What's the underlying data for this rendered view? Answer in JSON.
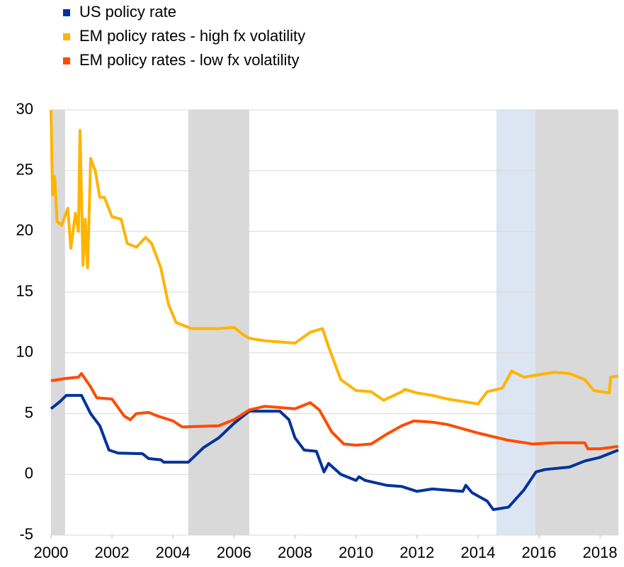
{
  "chart_data": {
    "type": "line",
    "xlim": [
      2000,
      2018.6
    ],
    "ylim": [
      -5,
      30
    ],
    "xticks": [
      2000,
      2002,
      2004,
      2006,
      2008,
      2010,
      2012,
      2014,
      2016,
      2018
    ],
    "yticks": [
      -5,
      0,
      5,
      10,
      15,
      20,
      25,
      30
    ],
    "grid": true,
    "bands": [
      {
        "start": 2000,
        "end": 2000.46,
        "color": "#d9d9d9"
      },
      {
        "start": 2004.5,
        "end": 2006.5,
        "color": "#d9d9d9"
      },
      {
        "start": 2014.6,
        "end": 2015.88,
        "color": "#dce6f2"
      },
      {
        "start": 2015.88,
        "end": 2018.6,
        "color": "#d9d9d9"
      }
    ],
    "series": [
      {
        "name": "US policy rate",
        "color": "#003299",
        "x": [
          2000,
          2000.3,
          2000.5,
          2001.0,
          2001.3,
          2001.6,
          2001.9,
          2002.2,
          2003.0,
          2003.2,
          2003.6,
          2003.7,
          2004.5,
          2005.0,
          2005.5,
          2006.0,
          2006.5,
          2007.5,
          2007.8,
          2008.0,
          2008.3,
          2008.7,
          2008.95,
          2009.1,
          2009.5,
          2010.0,
          2010.1,
          2010.3,
          2011.0,
          2011.5,
          2012.0,
          2012.5,
          2013.0,
          2013.5,
          2013.6,
          2013.8,
          2014.3,
          2014.5,
          2015.0,
          2015.5,
          2015.9,
          2016.2,
          2017.0,
          2017.5,
          2018.0,
          2018.6
        ],
        "values": [
          5.4,
          6.0,
          6.5,
          6.5,
          5.0,
          4.0,
          2.0,
          1.75,
          1.7,
          1.3,
          1.2,
          1.0,
          1.0,
          2.2,
          3.0,
          4.2,
          5.2,
          5.2,
          4.5,
          3.0,
          2.0,
          1.9,
          0.2,
          0.9,
          0,
          -0.5,
          -0.2,
          -0.5,
          -0.9,
          -1.0,
          -1.4,
          -1.2,
          -1.3,
          -1.4,
          -0.9,
          -1.5,
          -2.2,
          -2.9,
          -2.7,
          -1.3,
          0.2,
          0.4,
          0.6,
          1.1,
          1.4,
          2.0
        ]
      },
      {
        "name": "EM policy rates - high fx volatility",
        "color": "#ffb400",
        "x": [
          2000,
          2000.05,
          2000.12,
          2000.2,
          2000.35,
          2000.55,
          2000.65,
          2000.8,
          2000.9,
          2000.95,
          2001.05,
          2001.12,
          2001.2,
          2001.3,
          2001.45,
          2001.6,
          2001.75,
          2002,
          2002.3,
          2002.5,
          2002.8,
          2003.1,
          2003.3,
          2003.6,
          2003.85,
          2004.1,
          2004.6,
          2005,
          2005.5,
          2006,
          2006.3,
          2006.5,
          2007,
          2008,
          2008.5,
          2008.9,
          2009.1,
          2009.5,
          2010,
          2010.5,
          2010.9,
          2011.5,
          2011.6,
          2012,
          2012.5,
          2013,
          2013.5,
          2014,
          2014.3,
          2014.8,
          2015.1,
          2015.5,
          2016,
          2016.5,
          2017,
          2017.5,
          2017.8,
          2018.3,
          2018.35,
          2018.6
        ],
        "values": [
          30,
          23,
          24.5,
          20.8,
          20.5,
          21.9,
          18.6,
          21.5,
          20,
          28.3,
          17.2,
          21,
          17,
          26,
          25,
          22.8,
          22.8,
          21.2,
          21,
          19,
          18.7,
          19.5,
          19,
          17,
          14,
          12.5,
          12,
          12,
          12,
          12.1,
          11.5,
          11.2,
          11,
          10.8,
          11.7,
          12,
          10.5,
          7.8,
          6.9,
          6.8,
          6.1,
          6.8,
          7,
          6.7,
          6.5,
          6.2,
          6,
          5.8,
          6.8,
          7.1,
          8.5,
          8.0,
          8.2,
          8.4,
          8.3,
          7.8,
          6.9,
          6.7,
          8,
          8.1
        ]
      },
      {
        "name": "EM policy rates - low fx volatility",
        "color": "#ff4b00",
        "x": [
          2000,
          2000.5,
          2000.9,
          2001.0,
          2001.3,
          2001.5,
          2002,
          2002.4,
          2002.6,
          2002.8,
          2003.2,
          2003.5,
          2004,
          2004.3,
          2005.5,
          2006,
          2006.5,
          2007,
          2008,
          2008.5,
          2008.8,
          2009.2,
          2009.6,
          2010,
          2010.5,
          2011,
          2011.5,
          2011.9,
          2012.5,
          2013,
          2014,
          2015,
          2015.8,
          2016.5,
          2017.5,
          2017.6,
          2018,
          2018.6
        ],
        "values": [
          7.7,
          7.9,
          8.0,
          8.3,
          7.2,
          6.3,
          6.2,
          4.8,
          4.5,
          5.0,
          5.1,
          4.8,
          4.4,
          3.9,
          4.0,
          4.5,
          5.3,
          5.6,
          5.4,
          5.9,
          5.3,
          3.5,
          2.5,
          2.4,
          2.5,
          3.3,
          4.0,
          4.4,
          4.3,
          4.1,
          3.4,
          2.8,
          2.5,
          2.6,
          2.6,
          2.1,
          2.1,
          2.3
        ]
      }
    ]
  }
}
